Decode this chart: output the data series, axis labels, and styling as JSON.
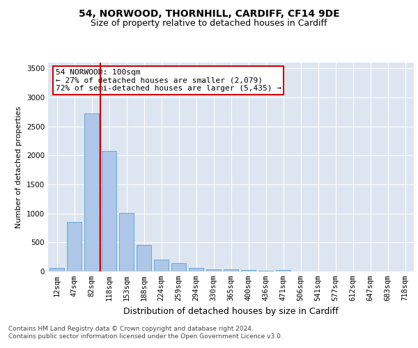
{
  "title": "54, NORWOOD, THORNHILL, CARDIFF, CF14 9DE",
  "subtitle": "Size of property relative to detached houses in Cardiff",
  "xlabel": "Distribution of detached houses by size in Cardiff",
  "ylabel": "Number of detached properties",
  "categories": [
    "12sqm",
    "47sqm",
    "82sqm",
    "118sqm",
    "153sqm",
    "188sqm",
    "224sqm",
    "259sqm",
    "294sqm",
    "330sqm",
    "365sqm",
    "400sqm",
    "436sqm",
    "471sqm",
    "506sqm",
    "541sqm",
    "577sqm",
    "612sqm",
    "647sqm",
    "683sqm",
    "718sqm"
  ],
  "values": [
    60,
    850,
    2730,
    2080,
    1010,
    460,
    205,
    140,
    60,
    40,
    40,
    30,
    15,
    25,
    0,
    0,
    0,
    0,
    0,
    0,
    0
  ],
  "bar_color": "#aec6e8",
  "bar_edge_color": "#5a9fd4",
  "background_color": "#dde6f0",
  "grid_color": "#ffffff",
  "vline_color": "#cc0000",
  "annotation_text_line1": "54 NORWOOD: 100sqm",
  "annotation_text_line2": "← 27% of detached houses are smaller (2,079)",
  "annotation_text_line3": "72% of semi-detached houses are larger (5,435) →",
  "annotation_box_color": "#cc0000",
  "ylim": [
    0,
    3600
  ],
  "yticks": [
    0,
    500,
    1000,
    1500,
    2000,
    2500,
    3000,
    3500
  ],
  "title_fontsize": 10,
  "subtitle_fontsize": 9,
  "xlabel_fontsize": 9,
  "ylabel_fontsize": 8,
  "tick_fontsize": 7.5,
  "annotation_fontsize": 8,
  "footer_text": "Contains HM Land Registry data © Crown copyright and database right 2024.\nContains public sector information licensed under the Open Government Licence v3.0."
}
